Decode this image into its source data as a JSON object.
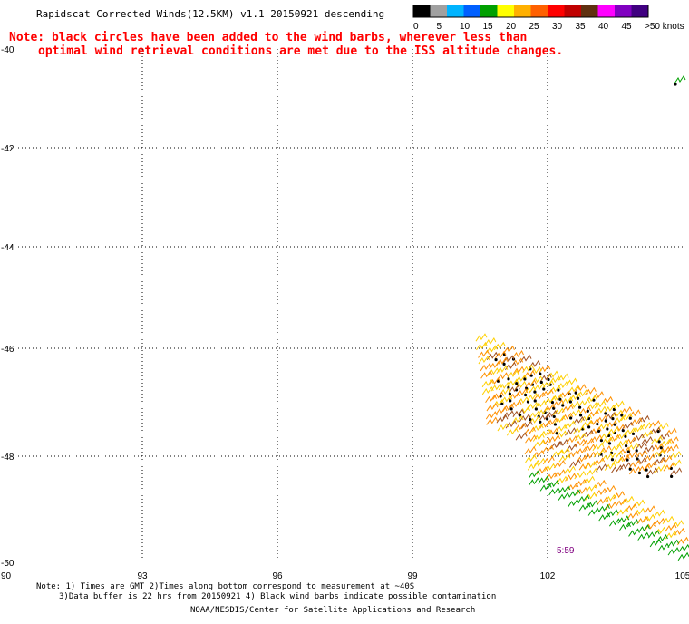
{
  "title": "Rapidscat Corrected Winds(12.5KM) v1.1 20150921 descending",
  "note": {
    "line1": "Note: black circles have been added to the wind barbs, wherever less than",
    "line2": "optimal wind retrieval conditions are met due to the ISS altitude changes."
  },
  "legend": {
    "labels": [
      "0",
      "5",
      "10",
      "15",
      "20",
      "25",
      "30",
      "35",
      "40",
      "45",
      ">50 knots"
    ],
    "colors": [
      "#000000",
      "#a0a0a0",
      "#00b4ff",
      "#0060ff",
      "#00a000",
      "#ffff00",
      "#ffb000",
      "#ff6000",
      "#ff0000",
      "#c00000",
      "#603010",
      "#ff00ff",
      "#8000c0",
      "#400080"
    ]
  },
  "axes": {
    "lon_ticks": [
      "90",
      "93",
      "96",
      "99",
      "102",
      "105"
    ],
    "lat_ticks": [
      "-40",
      "-42",
      "-44",
      "-46",
      "-48",
      "-50"
    ]
  },
  "time_label": "5:59",
  "footer": {
    "line1": "Note: 1) Times are GMT 2)Times along bottom correspond to measurement at ~40S",
    "line2": "3)Data buffer is 22 hrs from 20150921 4) Black wind barbs indicate possible contamination",
    "line3": "NOAA/NESDIS/Center for Satellite Applications and Research"
  },
  "colors": {
    "note": "#ff0000",
    "time_label": "#800080",
    "barb_yellow": "#ffd000",
    "barb_orange": "#ff9000",
    "barb_brown": "#a05020",
    "barb_green": "#00a000"
  }
}
